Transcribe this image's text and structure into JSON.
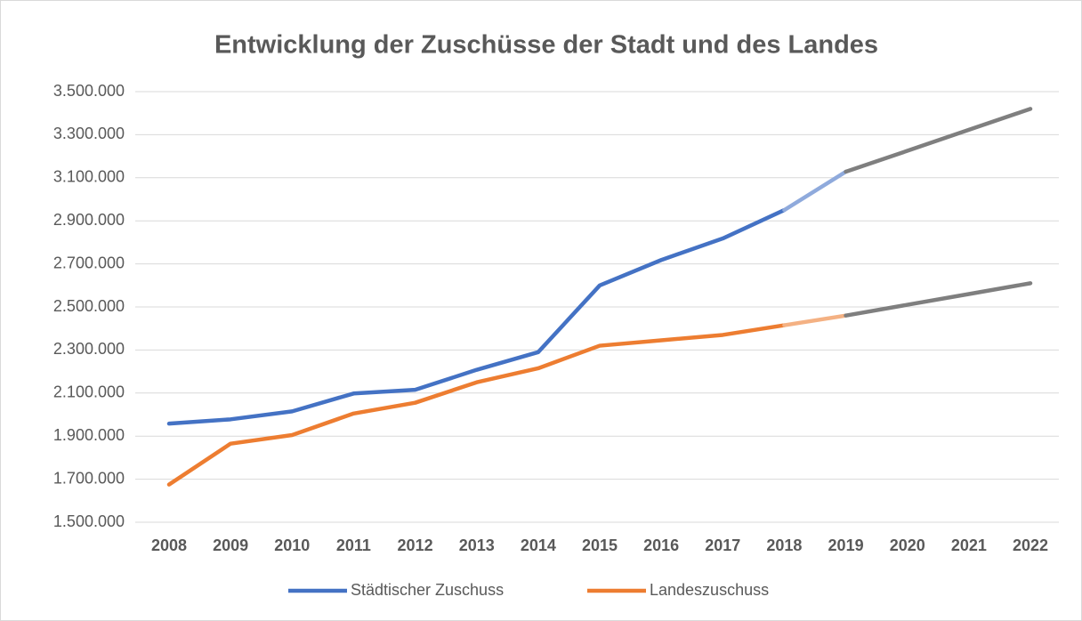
{
  "chart_data": {
    "type": "line",
    "title": "Entwicklung der Zuschüsse der Stadt und des Landes",
    "categories": [
      "2008",
      "2009",
      "2010",
      "2011",
      "2012",
      "2013",
      "2014",
      "2015",
      "2016",
      "2017",
      "2018",
      "2019",
      "2020",
      "2021",
      "2022"
    ],
    "series": [
      {
        "name": "Städtischer Zuschuss",
        "color": "#4472c4",
        "values": [
          1958000,
          1978000,
          2015000,
          2098000,
          2115000,
          2208000,
          2290000,
          2600000,
          2718000,
          2818000,
          2950000,
          3128000,
          3225000,
          3323000,
          3420000
        ],
        "segment_colors": [
          "#4472c4",
          "#4472c4",
          "#4472c4",
          "#4472c4",
          "#4472c4",
          "#4472c4",
          "#4472c4",
          "#4472c4",
          "#4472c4",
          "#4472c4",
          "#8faadc",
          "#7f7f7f",
          "#7f7f7f",
          "#7f7f7f"
        ]
      },
      {
        "name": "Landeszuschuss",
        "color": "#ed7d31",
        "values": [
          1675000,
          1865000,
          1905000,
          2005000,
          2055000,
          2150000,
          2215000,
          2320000,
          2345000,
          2370000,
          2415000,
          2460000,
          2510000,
          2560000,
          2610000
        ],
        "segment_colors": [
          "#ed7d31",
          "#ed7d31",
          "#ed7d31",
          "#ed7d31",
          "#ed7d31",
          "#ed7d31",
          "#ed7d31",
          "#ed7d31",
          "#ed7d31",
          "#ed7d31",
          "#f4b183",
          "#7f7f7f",
          "#7f7f7f",
          "#7f7f7f"
        ]
      }
    ],
    "ylim": [
      1500000,
      3500000
    ],
    "yticks": [
      {
        "value": 1500000,
        "label": "1.500.000"
      },
      {
        "value": 1700000,
        "label": "1.700.000"
      },
      {
        "value": 1900000,
        "label": "1.900.000"
      },
      {
        "value": 2100000,
        "label": "2.100.000"
      },
      {
        "value": 2300000,
        "label": "2.300.000"
      },
      {
        "value": 2500000,
        "label": "2.500.000"
      },
      {
        "value": 2700000,
        "label": "2.700.000"
      },
      {
        "value": 2900000,
        "label": "2.900.000"
      },
      {
        "value": 3100000,
        "label": "3.100.000"
      },
      {
        "value": 3300000,
        "label": "3.300.000"
      },
      {
        "value": 3500000,
        "label": "3.500.000"
      }
    ],
    "grid": true,
    "legend": "bottom"
  }
}
